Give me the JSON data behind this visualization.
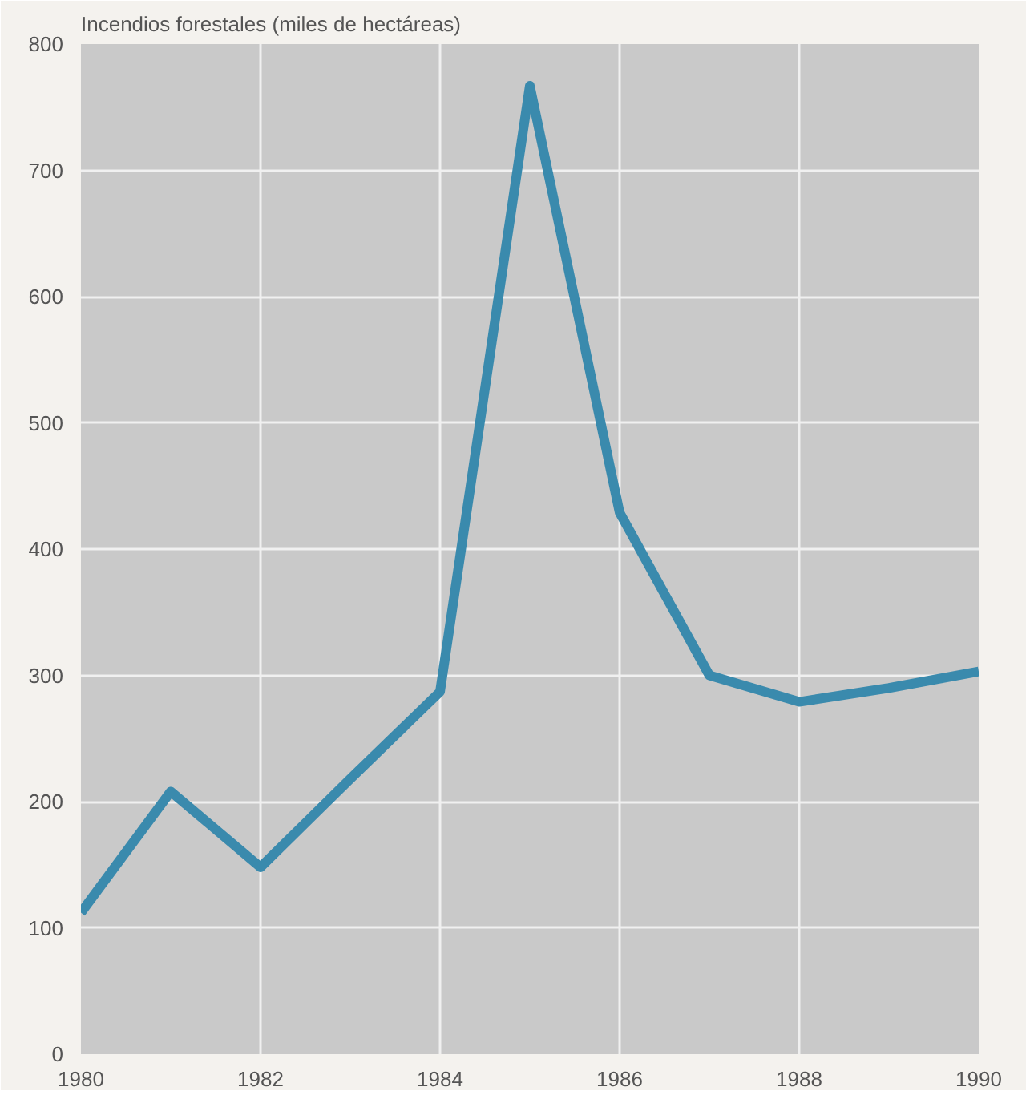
{
  "chart_data": {
    "type": "line",
    "title": "Incendios forestales (miles de hectáreas)",
    "x": [
      1980,
      1981,
      1982,
      1983,
      1984,
      1985,
      1986,
      1987,
      1988,
      1989,
      1990
    ],
    "series": [
      {
        "color": "#3a8aad",
        "values": [
          112,
          208,
          148,
          218,
          287,
          767,
          429,
          300,
          279,
          290,
          303
        ]
      }
    ],
    "xlim": [
      1980,
      1990
    ],
    "xticks": [
      1980,
      1982,
      1984,
      1986,
      1988,
      1990
    ],
    "ylim": [
      0,
      800
    ],
    "yticks": [
      0,
      100,
      200,
      300,
      400,
      500,
      600,
      700,
      800
    ],
    "grid": true,
    "marker": "none",
    "line_style": "solid"
  }
}
